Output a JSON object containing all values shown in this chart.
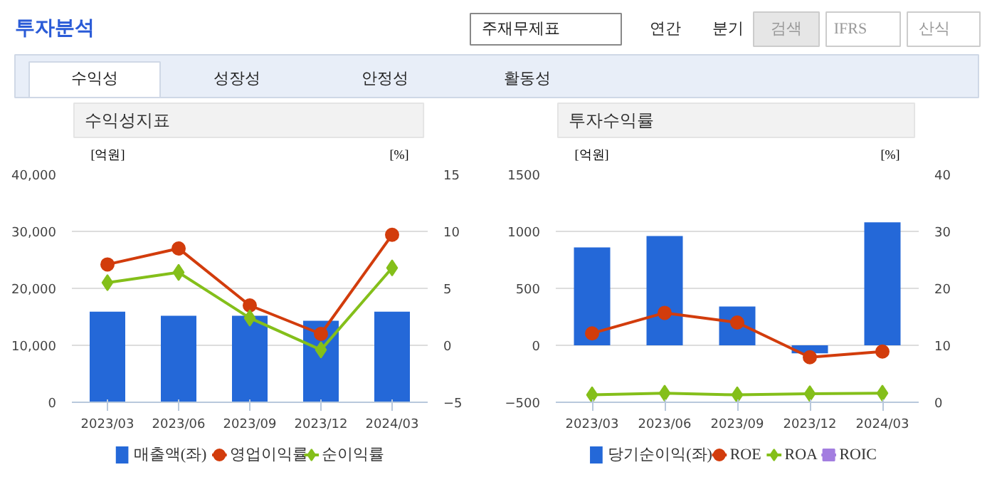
{
  "chart_data": [
    {
      "type": "other",
      "title": "투자분석",
      "annotations": [
        "주재무제표",
        "연간",
        "분기",
        "검색",
        "IFRS",
        "산식",
        "수익성",
        "성장성",
        "안정성",
        "활동성"
      ]
    },
    {
      "type": "bar",
      "title": "수익성지표",
      "categories": [
        "2023/03",
        "2023/06",
        "2023/09",
        "2023/12",
        "2024/03"
      ],
      "ylabel": "[억원]",
      "y2label": "[%]",
      "ylim": [
        0,
        40000
      ],
      "yticks": [
        0,
        {
          "value": 10000,
          "label": "10,000"
        },
        {
          "value": 20000,
          "label": "20,000"
        },
        {
          "value": 30000,
          "label": "30,000"
        },
        {
          "value": 40000,
          "label": "40,000"
        }
      ],
      "y2lim": [
        -5,
        15
      ],
      "y2ticks": [
        -5,
        0,
        5,
        10,
        15
      ],
      "grid": "y",
      "legend": "bottom",
      "series": [
        {
          "name": "매출액(좌)",
          "color": "#2468d8",
          "values": [
            15900,
            15200,
            15200,
            14300,
            15900
          ]
        },
        {
          "name": "영업이익률",
          "type": "line",
          "axis": "y2",
          "marker": "circle",
          "color": "#d23c0c",
          "values": [
            7.1,
            8.5,
            3.5,
            1.0,
            9.7
          ]
        },
        {
          "name": "순이익률",
          "type": "line",
          "axis": "y2",
          "marker": "diamond",
          "color": "#84bf1a",
          "values": [
            5.5,
            6.4,
            2.4,
            -0.4,
            6.8
          ]
        }
      ]
    },
    {
      "type": "bar",
      "title": "투자수익률",
      "categories": [
        "2023/03",
        "2023/06",
        "2023/09",
        "2023/12",
        "2024/03"
      ],
      "ylabel": "[억원]",
      "y2label": "[%]",
      "ylim": [
        -500,
        1500
      ],
      "yticks": [
        -500,
        0,
        500,
        1000,
        1500
      ],
      "y2lim": [
        0,
        40
      ],
      "y2ticks": [
        0,
        10,
        20,
        30,
        40
      ],
      "grid": "y",
      "legend": "bottom",
      "series": [
        {
          "name": "당기순이익(좌)",
          "color": "#2468d8",
          "values": [
            860,
            960,
            340,
            -70,
            1080
          ]
        },
        {
          "name": "ROE",
          "type": "line",
          "axis": "y2",
          "marker": "circle",
          "color": "#d23c0c",
          "values": [
            12.1,
            15.7,
            14.0,
            7.9,
            8.9
          ]
        },
        {
          "name": "ROA",
          "type": "line",
          "axis": "y2",
          "marker": "diamond",
          "color": "#84bf1a",
          "values": [
            1.3,
            1.6,
            1.3,
            1.5,
            1.6
          ]
        },
        {
          "name": "ROIC",
          "type": "line",
          "axis": "y2",
          "marker": "square",
          "color": "#a37ee0",
          "values": [
            null,
            null,
            null,
            null,
            null
          ]
        }
      ]
    }
  ]
}
